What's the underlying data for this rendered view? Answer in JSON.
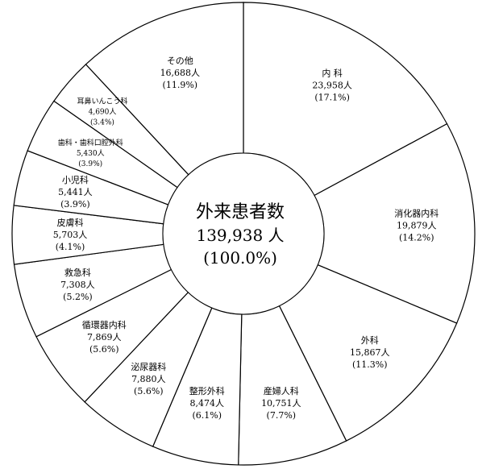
{
  "chart_data": {
    "type": "pie",
    "style": "donut",
    "center": {
      "title": "外来患者数",
      "total": "139,938 人",
      "percent": "(100.0%)"
    },
    "unit": "人",
    "slices": [
      {
        "label": "内 科",
        "value": 23958,
        "value_text": "23,958人",
        "pct_text": "(17.1%)"
      },
      {
        "label": "消化器内科",
        "value": 19879,
        "value_text": "19,879人",
        "pct_text": "(14.2%)"
      },
      {
        "label": "外科",
        "value": 15867,
        "value_text": "15,867人",
        "pct_text": "(11.3%)"
      },
      {
        "label": "産婦人科",
        "value": 10751,
        "value_text": "10,751人",
        "pct_text": "(7.7%)"
      },
      {
        "label": "整形外科",
        "value": 8474,
        "value_text": "8,474人",
        "pct_text": "(6.1%)"
      },
      {
        "label": "泌尿器科",
        "value": 7880,
        "value_text": "7,880人",
        "pct_text": "(5.6%)"
      },
      {
        "label": "循環器内科",
        "value": 7869,
        "value_text": "7,869人",
        "pct_text": "(5.6%)"
      },
      {
        "label": "救急科",
        "value": 7308,
        "value_text": "7,308人",
        "pct_text": "(5.2%)"
      },
      {
        "label": "皮膚科",
        "value": 5703,
        "value_text": "5,703人",
        "pct_text": "(4.1%)"
      },
      {
        "label": "小児科",
        "value": 5441,
        "value_text": "5,441人",
        "pct_text": "(3.9%)"
      },
      {
        "label": "歯科・歯科口腔外科",
        "value": 5430,
        "value_text": "5,430人",
        "pct_text": "(3.9%)"
      },
      {
        "label": "耳鼻いんこう科",
        "value": 4690,
        "value_text": "4,690人",
        "pct_text": "(3.4%)"
      },
      {
        "label": "その他",
        "value": 16688,
        "value_text": "16,688人",
        "pct_text": "(11.9%)"
      }
    ],
    "colors": {
      "fill": "#ffffff",
      "stroke": "#000000"
    }
  }
}
